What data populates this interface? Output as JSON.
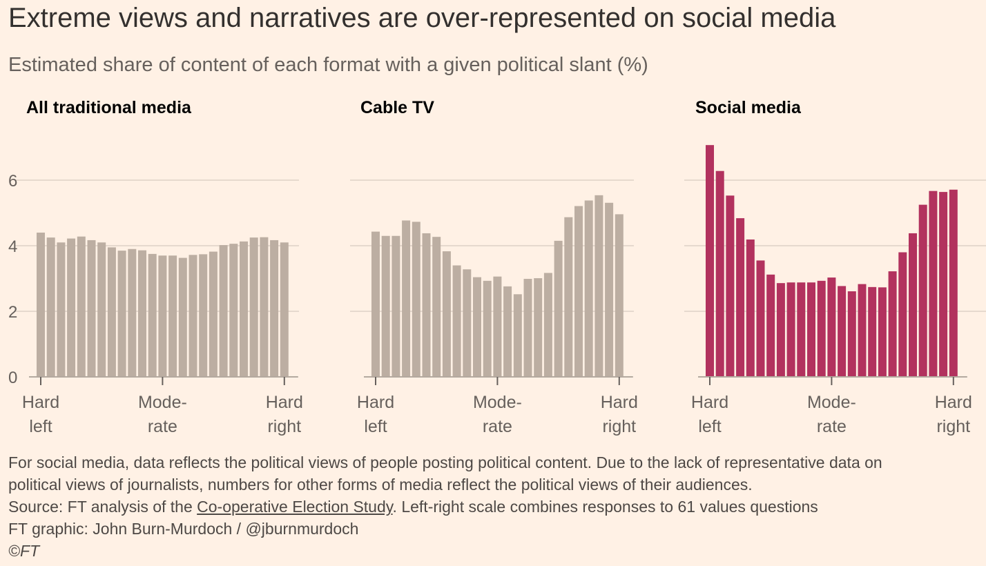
{
  "title": "Extreme views and narratives are over-represented on social media",
  "subtitle": "Estimated share of content of each format with a given political slant (%)",
  "chart_data": [
    {
      "type": "bar",
      "title": "All traditional media",
      "color": "#bcaea2",
      "ylim": [
        0,
        7.2
      ],
      "yticks": [
        "0",
        "2",
        "4",
        "6"
      ],
      "xlabels": [
        [
          "Hard",
          "left"
        ],
        [
          "Mode-",
          "rate"
        ],
        [
          "Hard",
          "right"
        ]
      ],
      "values": [
        4.4,
        4.25,
        4.1,
        4.22,
        4.28,
        4.17,
        4.1,
        3.95,
        3.85,
        3.9,
        3.86,
        3.75,
        3.7,
        3.7,
        3.63,
        3.72,
        3.74,
        3.82,
        4.02,
        4.06,
        4.13,
        4.25,
        4.26,
        4.17,
        4.1
      ]
    },
    {
      "type": "bar",
      "title": "Cable TV",
      "color": "#bcaea2",
      "ylim": [
        0,
        7.2
      ],
      "yticks": [
        "0",
        "2",
        "4",
        "6"
      ],
      "xlabels": [
        [
          "Hard",
          "left"
        ],
        [
          "Mode-",
          "rate"
        ],
        [
          "Hard",
          "right"
        ]
      ],
      "values": [
        4.43,
        4.3,
        4.3,
        4.77,
        4.73,
        4.38,
        4.27,
        3.83,
        3.4,
        3.28,
        3.04,
        2.93,
        3.06,
        2.76,
        2.52,
        2.99,
        3.01,
        3.17,
        4.15,
        4.87,
        5.21,
        5.38,
        5.54,
        5.31,
        4.96
      ]
    },
    {
      "type": "bar",
      "title": "Social media",
      "color": "#b2325e",
      "ylim": [
        0,
        7.2
      ],
      "yticks": [
        "0",
        "2",
        "4",
        "6"
      ],
      "xlabels": [
        [
          "Hard",
          "left"
        ],
        [
          "Mode-",
          "rate"
        ],
        [
          "Hard",
          "right"
        ]
      ],
      "values": [
        7.07,
        6.28,
        5.53,
        4.84,
        4.19,
        3.55,
        3.12,
        2.86,
        2.88,
        2.88,
        2.88,
        2.93,
        3.03,
        2.77,
        2.61,
        2.83,
        2.74,
        2.73,
        3.22,
        3.8,
        4.38,
        5.25,
        5.67,
        5.64,
        5.71
      ]
    }
  ],
  "footer": {
    "note1": "For social media, data reflects the political views of people posting political content. Due to the lack of representative data on",
    "note2": "political views of journalists, numbers for other forms of media reflect the political views of their audiences.",
    "source_prefix": "Source: FT analysis of the ",
    "source_link": "Co-operative Election Study",
    "source_suffix": ". Left-right scale combines responses to 61 values questions",
    "credit": "FT graphic: John Burn-Murdoch / @jburnmurdoch",
    "copyright": "©FT"
  }
}
